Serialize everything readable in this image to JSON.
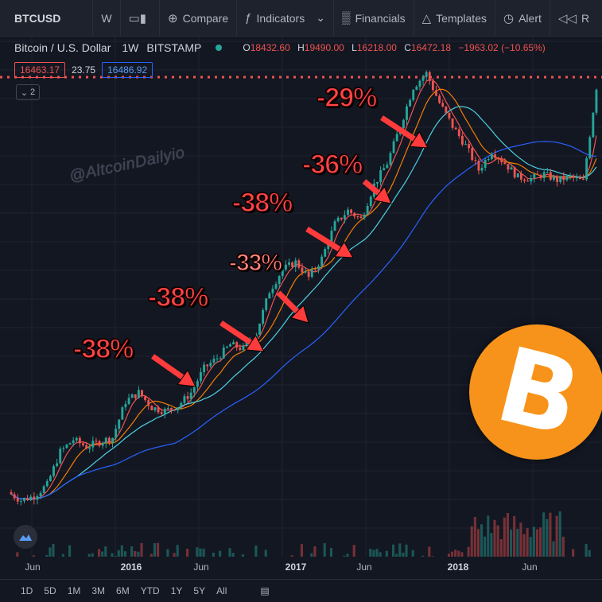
{
  "toolbar": {
    "symbol": "BTCUSD",
    "interval": "W",
    "compare": "Compare",
    "indicators": "Indicators",
    "financials": "Financials",
    "templates": "Templates",
    "alert": "Alert",
    "replay": "R"
  },
  "legend": {
    "title": "Bitcoin / U.S. Dollar",
    "interval": "1W",
    "exchange": "BITSTAMP",
    "o_label": "O",
    "o": "18432.60",
    "h_label": "H",
    "h": "19490.00",
    "l_label": "L",
    "l": "16218.00",
    "c_label": "C",
    "c": "16472.18",
    "change": "−1963.02 (−10.65%)"
  },
  "price_row": {
    "bid": "16463.17",
    "spread": "23.75",
    "ask": "16486.92"
  },
  "collapse_count": "2",
  "watermark": "@AltcoinDailyio",
  "annotations": [
    "-38%",
    "-38%",
    "-33%",
    "-38%",
    "-36%",
    "-29%"
  ],
  "btc_symbol": "B",
  "x_axis": [
    "Jun",
    "2016",
    "Jun",
    "2017",
    "Jun",
    "2018",
    "Jun"
  ],
  "timeframes": [
    "1D",
    "5D",
    "1M",
    "3M",
    "6M",
    "YTD",
    "1Y",
    "5Y",
    "All"
  ],
  "colors": {
    "up": "#26a69a",
    "down": "#ef5350",
    "accent": "#f7931a",
    "background": "#131722"
  },
  "chart_data": {
    "type": "candlestick",
    "title": "Bitcoin / U.S. Dollar",
    "series": [
      {
        "name": "close",
        "values": [
          250,
          230,
          240,
          270,
          380,
          430,
          400,
          420,
          440,
          640,
          700,
          600,
          580,
          610,
          700,
          900,
          1000,
          1150,
          1100,
          1300,
          2000,
          2500,
          2700,
          2300,
          2800,
          4000,
          4600,
          4200,
          6000,
          7500,
          11000,
          16500,
          19000,
          14000,
          11000,
          9000,
          7000,
          8500,
          7500,
          6500,
          6400,
          6700,
          6300,
          6500,
          6200,
          16472
        ]
      }
    ],
    "moving_averages": [
      "red",
      "orange",
      "teal",
      "blue"
    ]
  }
}
